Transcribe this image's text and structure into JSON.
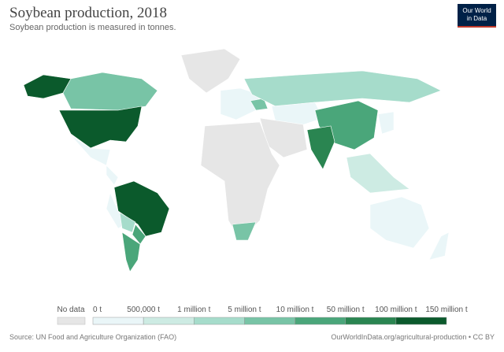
{
  "header": {
    "title": "Soybean production, 2018",
    "subtitle": "Soybean production is measured in tonnes."
  },
  "logo": {
    "lines": [
      "Our World",
      "in Data"
    ]
  },
  "legend": {
    "no_data": {
      "label": "No data",
      "color": "#e6e6e6"
    },
    "ticks": [
      "0 t",
      "500,000 t",
      "1 million t",
      "5 million t",
      "10 million t",
      "50 million t",
      "100 million t",
      "150 million t"
    ],
    "colors": [
      "#eaf6f8",
      "#cdebe3",
      "#a6dccb",
      "#78c4a6",
      "#4aa67a",
      "#2a8551",
      "#0b5a2c"
    ]
  },
  "footer": {
    "source": "Source: UN Food and Agriculture Organization (FAO)",
    "url": "OurWorldInData.org/agricultural-production • CC BY"
  }
}
